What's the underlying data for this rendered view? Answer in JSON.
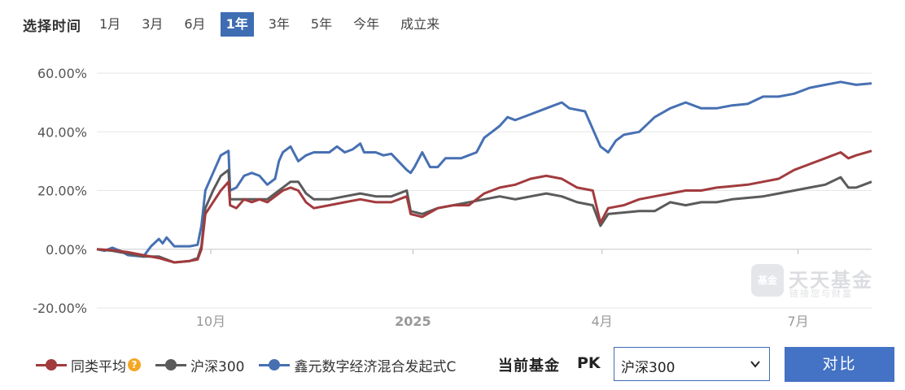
{
  "range": {
    "label": "选择时间",
    "tabs": [
      {
        "label": "1月",
        "active": false
      },
      {
        "label": "3月",
        "active": false
      },
      {
        "label": "6月",
        "active": false
      },
      {
        "label": "1年",
        "active": true
      },
      {
        "label": "3年",
        "active": false
      },
      {
        "label": "5年",
        "active": false
      },
      {
        "label": "今年",
        "active": false
      },
      {
        "label": "成立来",
        "active": false
      }
    ]
  },
  "legend": [
    {
      "label": "同类平均",
      "color": "#a23b3e",
      "help_icon": "question-icon"
    },
    {
      "label": "沪深300",
      "color": "#5b5b5b"
    },
    {
      "label": "鑫元数字经济混合发起式C",
      "color": "#4770b3"
    }
  ],
  "pk": {
    "label": "当前基金",
    "tag": "PK",
    "selected": "沪深300",
    "button": "对比"
  },
  "watermark": {
    "name": "天天基金",
    "slogan": "链接您与财富",
    "badge": "基金"
  },
  "chart_data": {
    "type": "line",
    "yticks": [
      "60.00%",
      "40.00%",
      "20.00%",
      "0.00%",
      "-20.00%"
    ],
    "ylim": [
      -20,
      60
    ],
    "xticks": [
      {
        "label": "10月",
        "t": 0.147
      },
      {
        "label": "2025",
        "t": 0.408
      },
      {
        "label": "4月",
        "t": 0.652
      },
      {
        "label": "7月",
        "t": 0.905
      }
    ],
    "grid": true,
    "series": [
      {
        "name": "鑫元数字经济混合发起式C",
        "color": "#4770b3",
        "points": [
          [
            0,
            0
          ],
          [
            0.01,
            -0.5
          ],
          [
            0.02,
            0.5
          ],
          [
            0.03,
            -0.5
          ],
          [
            0.04,
            -2
          ],
          [
            0.06,
            -2.5
          ],
          [
            0.07,
            1
          ],
          [
            0.08,
            3.5
          ],
          [
            0.085,
            2
          ],
          [
            0.09,
            4
          ],
          [
            0.1,
            1
          ],
          [
            0.12,
            1
          ],
          [
            0.13,
            1.5
          ],
          [
            0.135,
            8
          ],
          [
            0.14,
            20
          ],
          [
            0.15,
            26
          ],
          [
            0.16,
            32
          ],
          [
            0.17,
            33.5
          ],
          [
            0.172,
            20
          ],
          [
            0.18,
            21
          ],
          [
            0.19,
            25
          ],
          [
            0.2,
            26
          ],
          [
            0.21,
            25
          ],
          [
            0.22,
            22
          ],
          [
            0.23,
            24
          ],
          [
            0.235,
            30
          ],
          [
            0.24,
            33
          ],
          [
            0.25,
            35
          ],
          [
            0.26,
            30
          ],
          [
            0.27,
            32
          ],
          [
            0.28,
            33
          ],
          [
            0.3,
            33
          ],
          [
            0.31,
            35
          ],
          [
            0.32,
            33
          ],
          [
            0.33,
            34
          ],
          [
            0.34,
            36
          ],
          [
            0.345,
            33
          ],
          [
            0.36,
            33
          ],
          [
            0.37,
            32
          ],
          [
            0.38,
            32.5
          ],
          [
            0.4,
            27
          ],
          [
            0.405,
            26
          ],
          [
            0.41,
            28
          ],
          [
            0.42,
            33
          ],
          [
            0.43,
            28
          ],
          [
            0.44,
            28
          ],
          [
            0.45,
            31
          ],
          [
            0.46,
            31
          ],
          [
            0.47,
            31
          ],
          [
            0.49,
            33
          ],
          [
            0.5,
            38
          ],
          [
            0.51,
            40
          ],
          [
            0.52,
            42
          ],
          [
            0.53,
            45
          ],
          [
            0.54,
            44
          ],
          [
            0.56,
            46
          ],
          [
            0.58,
            48
          ],
          [
            0.6,
            50
          ],
          [
            0.61,
            48
          ],
          [
            0.63,
            47
          ],
          [
            0.65,
            35
          ],
          [
            0.66,
            33
          ],
          [
            0.67,
            37
          ],
          [
            0.68,
            39
          ],
          [
            0.7,
            40
          ],
          [
            0.72,
            45
          ],
          [
            0.74,
            48
          ],
          [
            0.76,
            50
          ],
          [
            0.78,
            48
          ],
          [
            0.8,
            48
          ],
          [
            0.82,
            49
          ],
          [
            0.84,
            49.5
          ],
          [
            0.86,
            52
          ],
          [
            0.88,
            52
          ],
          [
            0.9,
            53
          ],
          [
            0.92,
            55
          ],
          [
            0.94,
            56
          ],
          [
            0.96,
            57
          ],
          [
            0.98,
            56
          ],
          [
            1,
            56.5
          ]
        ]
      },
      {
        "name": "沪深300",
        "color": "#5b5b5b",
        "points": [
          [
            0,
            0
          ],
          [
            0.02,
            -0.5
          ],
          [
            0.04,
            -1.5
          ],
          [
            0.06,
            -2.5
          ],
          [
            0.08,
            -2.5
          ],
          [
            0.1,
            -4.5
          ],
          [
            0.12,
            -4
          ],
          [
            0.13,
            -3
          ],
          [
            0.135,
            1
          ],
          [
            0.14,
            14
          ],
          [
            0.15,
            20
          ],
          [
            0.16,
            25
          ],
          [
            0.17,
            27
          ],
          [
            0.172,
            17
          ],
          [
            0.18,
            17
          ],
          [
            0.2,
            17
          ],
          [
            0.22,
            17
          ],
          [
            0.23,
            19
          ],
          [
            0.24,
            21
          ],
          [
            0.25,
            23
          ],
          [
            0.26,
            23
          ],
          [
            0.27,
            19
          ],
          [
            0.28,
            17
          ],
          [
            0.3,
            17
          ],
          [
            0.32,
            18
          ],
          [
            0.34,
            19
          ],
          [
            0.36,
            18
          ],
          [
            0.38,
            18
          ],
          [
            0.4,
            20
          ],
          [
            0.405,
            13
          ],
          [
            0.42,
            12
          ],
          [
            0.44,
            14
          ],
          [
            0.46,
            15
          ],
          [
            0.5,
            17
          ],
          [
            0.52,
            18
          ],
          [
            0.54,
            17
          ],
          [
            0.56,
            18
          ],
          [
            0.58,
            19
          ],
          [
            0.6,
            18
          ],
          [
            0.62,
            16
          ],
          [
            0.64,
            15
          ],
          [
            0.65,
            8
          ],
          [
            0.66,
            12
          ],
          [
            0.7,
            13
          ],
          [
            0.72,
            13
          ],
          [
            0.74,
            16
          ],
          [
            0.76,
            15
          ],
          [
            0.78,
            16
          ],
          [
            0.8,
            16
          ],
          [
            0.82,
            17
          ],
          [
            0.84,
            17.5
          ],
          [
            0.86,
            18
          ],
          [
            0.88,
            19
          ],
          [
            0.9,
            20
          ],
          [
            0.92,
            21
          ],
          [
            0.94,
            22
          ],
          [
            0.96,
            24.5
          ],
          [
            0.97,
            21
          ],
          [
            0.98,
            21
          ],
          [
            0.99,
            22
          ],
          [
            1,
            23
          ]
        ]
      },
      {
        "name": "同类平均",
        "color": "#a23b3e",
        "points": [
          [
            0,
            0
          ],
          [
            0.02,
            -0.3
          ],
          [
            0.04,
            -1
          ],
          [
            0.06,
            -2
          ],
          [
            0.08,
            -3
          ],
          [
            0.1,
            -4.5
          ],
          [
            0.12,
            -4
          ],
          [
            0.13,
            -3.5
          ],
          [
            0.135,
            0
          ],
          [
            0.14,
            12
          ],
          [
            0.15,
            16
          ],
          [
            0.16,
            20
          ],
          [
            0.17,
            23
          ],
          [
            0.172,
            15
          ],
          [
            0.18,
            14
          ],
          [
            0.19,
            17
          ],
          [
            0.2,
            16
          ],
          [
            0.21,
            17
          ],
          [
            0.22,
            16
          ],
          [
            0.23,
            18
          ],
          [
            0.24,
            20
          ],
          [
            0.25,
            21
          ],
          [
            0.26,
            20
          ],
          [
            0.27,
            16
          ],
          [
            0.28,
            14
          ],
          [
            0.3,
            15
          ],
          [
            0.32,
            16
          ],
          [
            0.34,
            17
          ],
          [
            0.36,
            16
          ],
          [
            0.38,
            16
          ],
          [
            0.4,
            18
          ],
          [
            0.405,
            12
          ],
          [
            0.42,
            11
          ],
          [
            0.44,
            14
          ],
          [
            0.46,
            15
          ],
          [
            0.48,
            15
          ],
          [
            0.5,
            19
          ],
          [
            0.52,
            21
          ],
          [
            0.54,
            22
          ],
          [
            0.56,
            24
          ],
          [
            0.58,
            25
          ],
          [
            0.6,
            24
          ],
          [
            0.62,
            21
          ],
          [
            0.64,
            20
          ],
          [
            0.65,
            9
          ],
          [
            0.66,
            14
          ],
          [
            0.68,
            15
          ],
          [
            0.7,
            17
          ],
          [
            0.72,
            18
          ],
          [
            0.74,
            19
          ],
          [
            0.76,
            20
          ],
          [
            0.78,
            20
          ],
          [
            0.8,
            21
          ],
          [
            0.82,
            21.5
          ],
          [
            0.84,
            22
          ],
          [
            0.86,
            23
          ],
          [
            0.88,
            24
          ],
          [
            0.9,
            27
          ],
          [
            0.92,
            29
          ],
          [
            0.94,
            31
          ],
          [
            0.96,
            33
          ],
          [
            0.97,
            31
          ],
          [
            0.98,
            32
          ],
          [
            1,
            33.5
          ]
        ]
      }
    ]
  }
}
